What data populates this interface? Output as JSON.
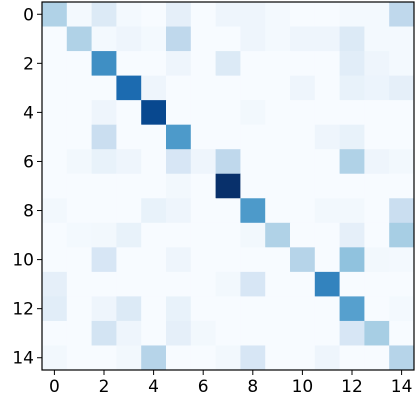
{
  "chart_data": {
    "type": "heatmap",
    "title": "",
    "xlabel": "",
    "ylabel": "",
    "colormap": "Blues",
    "vmin": 0,
    "vmax": 1,
    "rows": [
      0,
      1,
      2,
      3,
      4,
      5,
      6,
      7,
      8,
      9,
      10,
      11,
      12,
      13,
      14
    ],
    "cols": [
      0,
      1,
      2,
      3,
      4,
      5,
      6,
      7,
      8,
      9,
      10,
      11,
      12,
      13,
      14
    ],
    "x_ticks": [
      "0",
      "2",
      "4",
      "6",
      "8",
      "10",
      "12",
      "14"
    ],
    "y_ticks": [
      "0",
      "2",
      "4",
      "6",
      "8",
      "10",
      "12",
      "14"
    ],
    "values": [
      [
        0.35,
        0.02,
        0.15,
        0.02,
        0.0,
        0.1,
        0.0,
        0.05,
        0.05,
        0.02,
        0.0,
        0.0,
        0.02,
        0.02,
        0.3
      ],
      [
        0.0,
        0.35,
        0.02,
        0.05,
        0.02,
        0.3,
        0.0,
        0.0,
        0.05,
        0.02,
        0.05,
        0.05,
        0.15,
        0.02,
        0.02
      ],
      [
        0.0,
        0.0,
        0.7,
        0.0,
        0.0,
        0.05,
        0.0,
        0.15,
        0.0,
        0.0,
        0.0,
        0.0,
        0.12,
        0.05,
        0.02
      ],
      [
        0.0,
        0.0,
        0.0,
        0.85,
        0.05,
        0.0,
        0.0,
        0.0,
        0.0,
        0.0,
        0.05,
        0.0,
        0.08,
        0.06,
        0.1
      ],
      [
        0.0,
        0.0,
        0.05,
        0.0,
        1.0,
        0.0,
        0.0,
        0.0,
        0.03,
        0.0,
        0.0,
        0.0,
        0.0,
        0.0,
        0.0
      ],
      [
        0.0,
        0.0,
        0.25,
        0.0,
        0.0,
        0.65,
        0.0,
        0.0,
        0.0,
        0.0,
        0.0,
        0.05,
        0.08,
        0.0,
        0.0
      ],
      [
        0.0,
        0.03,
        0.08,
        0.05,
        0.0,
        0.18,
        0.05,
        0.3,
        0.0,
        0.0,
        0.0,
        0.0,
        0.35,
        0.05,
        0.03
      ],
      [
        0.0,
        0.0,
        0.0,
        0.0,
        0.0,
        0.03,
        0.0,
        1.1,
        0.0,
        0.0,
        0.0,
        0.0,
        0.0,
        0.0,
        0.0
      ],
      [
        0.03,
        0.0,
        0.0,
        0.0,
        0.08,
        0.05,
        0.0,
        0.0,
        0.65,
        0.0,
        0.0,
        0.03,
        0.03,
        0.0,
        0.25
      ],
      [
        0.0,
        0.02,
        0.03,
        0.08,
        0.0,
        0.0,
        0.0,
        0.0,
        0.03,
        0.35,
        0.0,
        0.0,
        0.1,
        0.0,
        0.38
      ],
      [
        0.0,
        0.0,
        0.18,
        0.0,
        0.0,
        0.05,
        0.0,
        0.0,
        0.0,
        0.0,
        0.33,
        0.0,
        0.45,
        0.03,
        0.02
      ],
      [
        0.1,
        0.0,
        0.0,
        0.0,
        0.0,
        0.0,
        0.0,
        0.03,
        0.18,
        0.0,
        0.0,
        0.75,
        0.0,
        0.0,
        0.0
      ],
      [
        0.12,
        0.0,
        0.05,
        0.15,
        0.0,
        0.08,
        0.0,
        0.0,
        0.0,
        0.0,
        0.0,
        0.0,
        0.62,
        0.0,
        0.02
      ],
      [
        0.0,
        0.0,
        0.2,
        0.05,
        0.0,
        0.1,
        0.03,
        0.0,
        0.0,
        0.0,
        0.0,
        0.0,
        0.18,
        0.38,
        0.0
      ],
      [
        0.03,
        0.0,
        0.0,
        0.03,
        0.33,
        0.0,
        0.0,
        0.03,
        0.18,
        0.0,
        0.0,
        0.05,
        0.0,
        0.0,
        0.33
      ]
    ]
  }
}
